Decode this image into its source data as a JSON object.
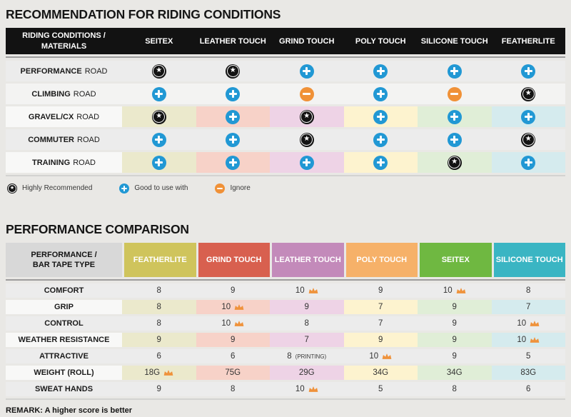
{
  "sections": {
    "riding": {
      "title": "RECOMMENDATION FOR RIDING CONDITIONS"
    },
    "performance": {
      "title": "PERFORMANCE COMPARISON",
      "remark": "REMARK: A higher score is better"
    }
  },
  "legend": {
    "items": [
      {
        "icon": "star",
        "label": "Highly Recommended"
      },
      {
        "icon": "plus",
        "label": "Good to use with"
      },
      {
        "icon": "minus",
        "label": "Ignore"
      }
    ]
  },
  "palette": {
    "column_light": [
      "#ebe9cc",
      "#f7d2c8",
      "#eed3e6",
      "#fdf3cf",
      "#e0eed7",
      "#d5ebee"
    ],
    "row_plain": "#ececec",
    "row_plain_alt": "#f3f3f2",
    "row_label_light": "#f8f8f7",
    "header_black": "#121212",
    "header_gray": "#d8d8d8",
    "icon_star": "#131313",
    "icon_plus": "#2198d4",
    "icon_minus": "#f09137",
    "crown": "#ef923b"
  },
  "chart_data": [
    {
      "type": "table",
      "title": "RECOMMENDATION FOR RIDING CONDITIONS",
      "corner_header": "RIDING CONDITIONS /\nMATERIALS",
      "columns": [
        "SEITEX",
        "LEATHER TOUCH",
        "GRIND TOUCH",
        "POLY TOUCH",
        "SILICONE TOUCH",
        "FEATHERLITE"
      ],
      "icon_legend": {
        "star": "Highly Recommended",
        "plus": "Good to use with",
        "minus": "Ignore"
      },
      "rows": [
        {
          "label": "PERFORMANCE",
          "label_suffix": "ROAD",
          "colored": false,
          "alt": false,
          "cells": [
            "star",
            "star",
            "plus",
            "plus",
            "plus",
            "plus"
          ]
        },
        {
          "label": "CLIMBING",
          "label_suffix": "ROAD",
          "colored": false,
          "alt": true,
          "cells": [
            "plus",
            "plus",
            "minus",
            "plus",
            "minus",
            "star"
          ]
        },
        {
          "label": "GRAVEL/CX",
          "label_suffix": "ROAD",
          "colored": true,
          "alt": false,
          "cells": [
            "star",
            "plus",
            "star",
            "plus",
            "plus",
            "plus"
          ]
        },
        {
          "label": "COMMUTER",
          "label_suffix": "ROAD",
          "colored": false,
          "alt": false,
          "cells": [
            "plus",
            "plus",
            "star",
            "plus",
            "plus",
            "star"
          ]
        },
        {
          "label": "TRAINING",
          "label_suffix": "ROAD",
          "colored": true,
          "alt": false,
          "cells": [
            "plus",
            "plus",
            "plus",
            "plus",
            "star",
            "plus"
          ]
        }
      ]
    },
    {
      "type": "table",
      "title": "PERFORMANCE COMPARISON",
      "corner_header": "PERFORMANCE /\nBAR TAPE TYPE",
      "columns": [
        {
          "name": "FEATHERLITE",
          "header_color": "#cfc45c"
        },
        {
          "name": "GRIND TOUCH",
          "header_color": "#d8604f"
        },
        {
          "name": "LEATHER TOUCH",
          "header_color": "#c38aba"
        },
        {
          "name": "POLY TOUCH",
          "header_color": "#f6b169"
        },
        {
          "name": "SEITEX",
          "header_color": "#6fb841"
        },
        {
          "name": "SILICONE TOUCH",
          "header_color": "#3ab5c3"
        }
      ],
      "rows": [
        {
          "label": "COMFORT",
          "colored": false,
          "cells": [
            {
              "v": "8"
            },
            {
              "v": "9"
            },
            {
              "v": "10",
              "crown": true
            },
            {
              "v": "9"
            },
            {
              "v": "10",
              "crown": true
            },
            {
              "v": "8"
            }
          ]
        },
        {
          "label": "GRIP",
          "colored": true,
          "cells": [
            {
              "v": "8"
            },
            {
              "v": "10",
              "crown": true
            },
            {
              "v": "9"
            },
            {
              "v": "7"
            },
            {
              "v": "9"
            },
            {
              "v": "7"
            }
          ]
        },
        {
          "label": "CONTROL",
          "colored": false,
          "cells": [
            {
              "v": "8"
            },
            {
              "v": "10",
              "crown": true
            },
            {
              "v": "8"
            },
            {
              "v": "7"
            },
            {
              "v": "9"
            },
            {
              "v": "10",
              "crown": true
            }
          ]
        },
        {
          "label": "WEATHER RESISTANCE",
          "colored": true,
          "cells": [
            {
              "v": "9"
            },
            {
              "v": "9"
            },
            {
              "v": "7"
            },
            {
              "v": "9"
            },
            {
              "v": "9"
            },
            {
              "v": "10",
              "crown": true
            }
          ]
        },
        {
          "label": "ATTRACTIVE",
          "colored": false,
          "cells": [
            {
              "v": "6"
            },
            {
              "v": "6"
            },
            {
              "v": "8",
              "suffix": "(PRINTING)"
            },
            {
              "v": "10",
              "crown": true
            },
            {
              "v": "9"
            },
            {
              "v": "5"
            }
          ]
        },
        {
          "label": "WEIGHT (ROLL)",
          "colored": true,
          "cells": [
            {
              "v": "18G",
              "crown": true
            },
            {
              "v": "75G"
            },
            {
              "v": "29G"
            },
            {
              "v": "34G"
            },
            {
              "v": "34G"
            },
            {
              "v": "83G"
            }
          ]
        },
        {
          "label": "SWEAT HANDS",
          "colored": false,
          "cells": [
            {
              "v": "9"
            },
            {
              "v": "8"
            },
            {
              "v": "10",
              "crown": true
            },
            {
              "v": "5"
            },
            {
              "v": "8"
            },
            {
              "v": "6"
            }
          ]
        }
      ],
      "remark": "REMARK: A higher score is better"
    }
  ]
}
